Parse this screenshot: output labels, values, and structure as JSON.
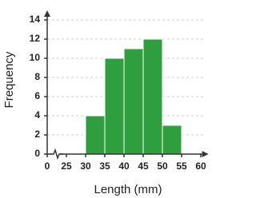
{
  "chart_data": {
    "type": "histogram",
    "bins": [
      30,
      35,
      40,
      45,
      50,
      55
    ],
    "counts": [
      4,
      10,
      11,
      12,
      3
    ],
    "color": "#2e9e3e",
    "x_label": "Length (mm)",
    "y_label": "Frequency",
    "xlim": [
      0,
      62
    ],
    "x_break": [
      0,
      20
    ],
    "xticks": [
      0,
      25,
      30,
      35,
      40,
      45,
      50,
      55,
      60
    ],
    "ylim": [
      0,
      15
    ],
    "yticks": [
      0,
      2,
      4,
      6,
      8,
      10,
      12,
      14
    ],
    "grid": true
  }
}
